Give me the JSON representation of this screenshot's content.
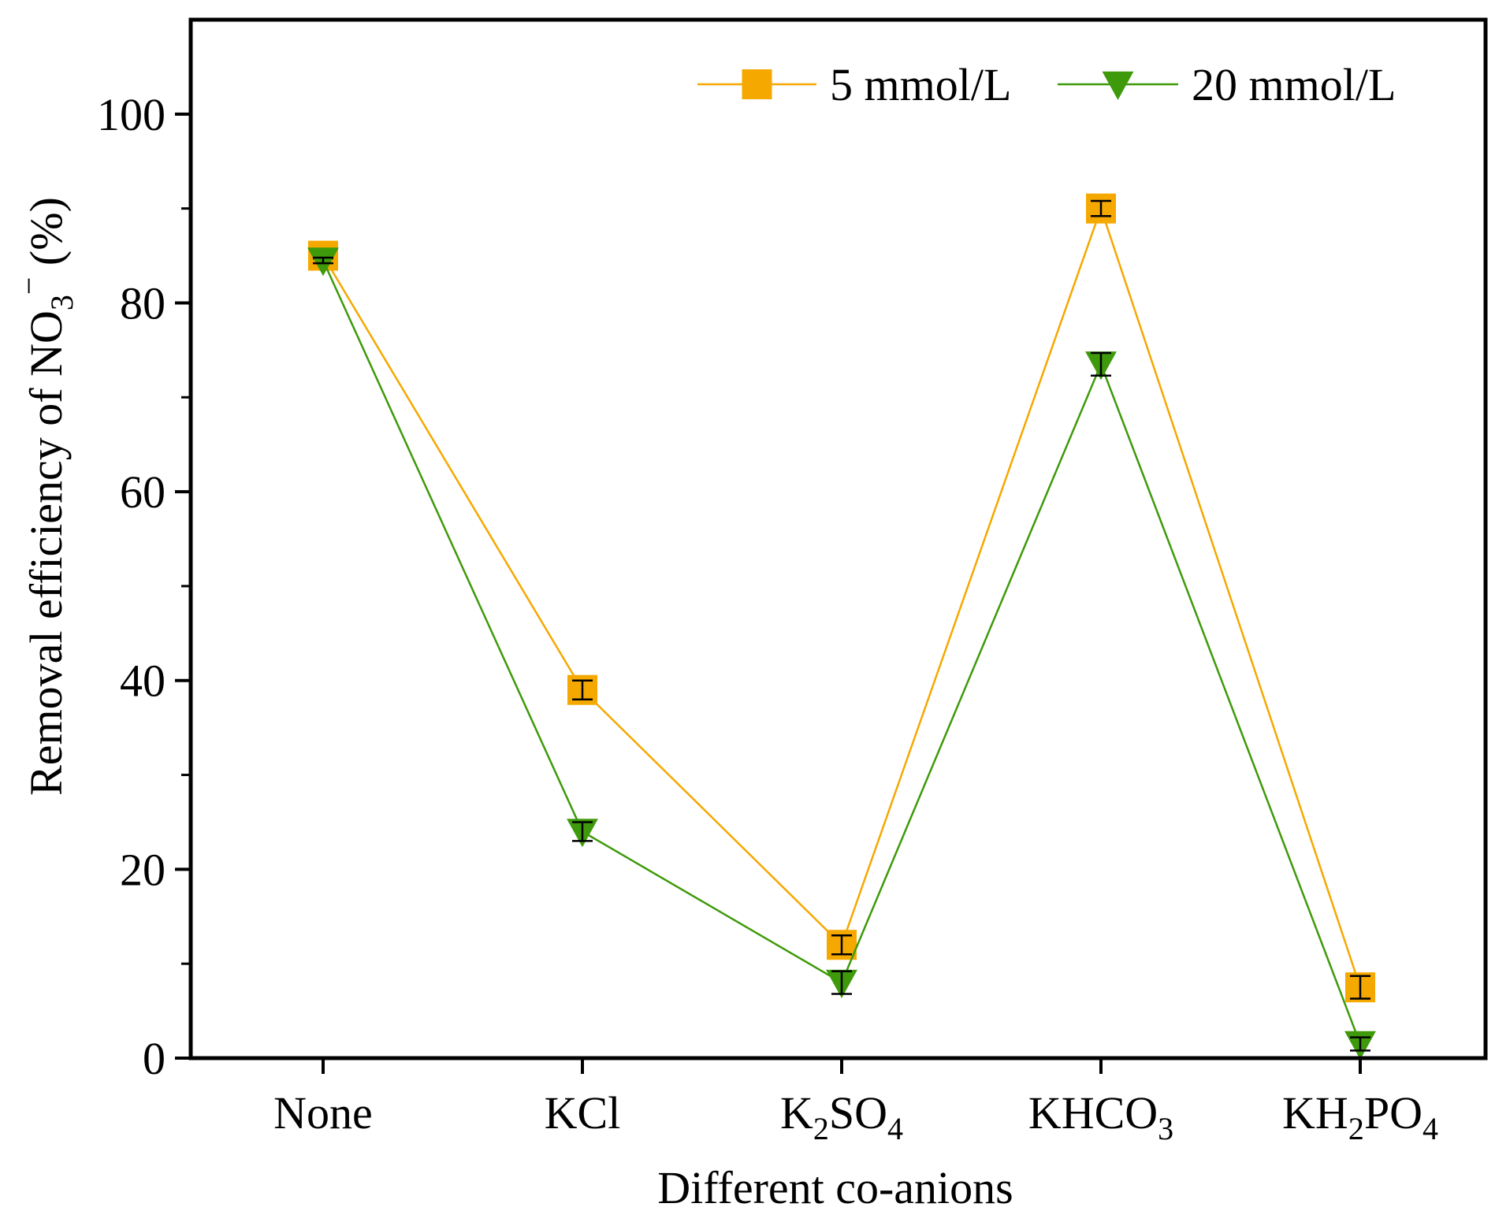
{
  "chart_data": {
    "type": "line",
    "xlabel": "Different co-anions",
    "ylabel": {
      "base": "Removal efficiency of NO",
      "sub": "3",
      "sup": "−",
      "tail": "  (%)"
    },
    "categories": [
      {
        "base": "None",
        "parts": [
          {
            "t": "None",
            "s": 0
          }
        ]
      },
      {
        "base": "KCl",
        "parts": [
          {
            "t": "KCl",
            "s": 0
          }
        ]
      },
      {
        "base": "K2SO4",
        "parts": [
          {
            "t": "K",
            "s": 0
          },
          {
            "t": "2",
            "s": 1
          },
          {
            "t": "SO",
            "s": 0
          },
          {
            "t": "4",
            "s": 1
          }
        ]
      },
      {
        "base": "KHCO3",
        "parts": [
          {
            "t": "KHCO",
            "s": 0
          },
          {
            "t": "3",
            "s": 1
          }
        ]
      },
      {
        "base": "KH2PO4",
        "parts": [
          {
            "t": "KH",
            "s": 0
          },
          {
            "t": "2",
            "s": 1
          },
          {
            "t": "PO",
            "s": 0
          },
          {
            "t": "4",
            "s": 1
          }
        ]
      }
    ],
    "ylim": [
      0,
      110
    ],
    "yticks": [
      0,
      20,
      40,
      60,
      80,
      100
    ],
    "yminor": [
      10,
      30,
      50,
      70,
      90
    ],
    "series": [
      {
        "name": "5 mmol/L",
        "marker": "square",
        "color": "#F5A800",
        "values": [
          85,
          39,
          12,
          90,
          7.5
        ],
        "errors": [
          0.3,
          1.0,
          1.0,
          0.8,
          1.2
        ]
      },
      {
        "name": "20 mmol/L",
        "marker": "triangle-down",
        "color": "#3E9A0A",
        "values": [
          84.5,
          24,
          8,
          73.5,
          1.5
        ],
        "errors": [
          0.3,
          1.0,
          1.2,
          1.2,
          0.7
        ]
      }
    ],
    "legend_position": "top-right",
    "grid": false
  }
}
